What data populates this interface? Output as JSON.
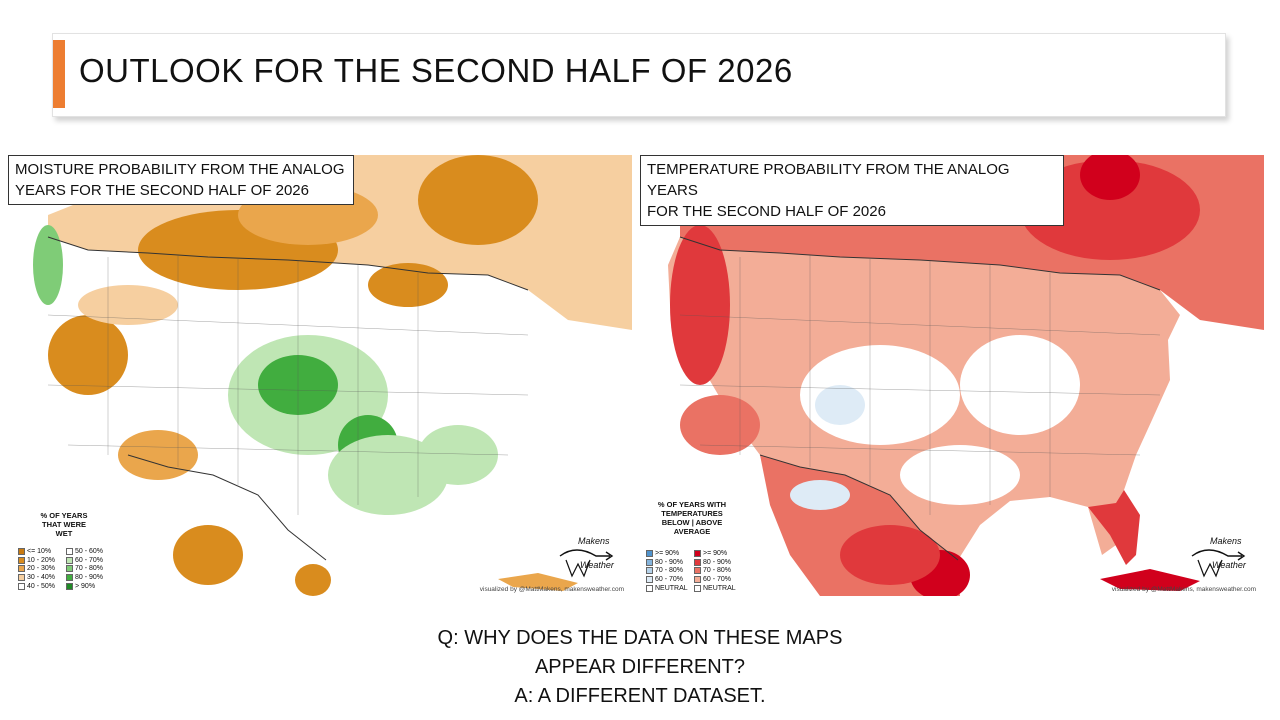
{
  "slide": {
    "title": "OUTLOOK FOR THE SECOND HALF OF 2026"
  },
  "moisture_map": {
    "label_line1": "MOISTURE PROBABILITY FROM THE ANALOG",
    "label_line2": "YEARS FOR THE SECOND HALF OF 2026",
    "legend_title": [
      "% OF YEARS",
      "THAT WERE",
      "WET"
    ],
    "legend_left": [
      {
        "label": "<= 10%",
        "color": "#c97a10"
      },
      {
        "label": "10 - 20%",
        "color": "#d98c1e"
      },
      {
        "label": "20 - 30%",
        "color": "#eaa64c"
      },
      {
        "label": "30 - 40%",
        "color": "#f6cfa0"
      },
      {
        "label": "40 - 50%",
        "color": "#ffffff"
      }
    ],
    "legend_right": [
      {
        "label": "50 - 60%",
        "color": "#ffffff"
      },
      {
        "label": "60 - 70%",
        "color": "#bfe6b4"
      },
      {
        "label": "70 - 80%",
        "color": "#7fcc77"
      },
      {
        "label": "80 - 90%",
        "color": "#41ad3f"
      },
      {
        "label": "> 90%",
        "color": "#1f8a26"
      }
    ],
    "credit": "visualized by @MattMakens, makensweather.com",
    "logo_top": "Makens",
    "logo_bottom": "Weather"
  },
  "temperature_map": {
    "label_line1": "TEMPERATURE PROBABILITY FROM THE ANALOG YEARS",
    "label_line2": "FOR THE SECOND HALF OF 2026",
    "legend_title": [
      "% OF YEARS WITH",
      "TEMPERATURES",
      "BELOW  |  ABOVE",
      "AVERAGE"
    ],
    "legend_left": [
      {
        "label": ">= 90%",
        "color": "#4f93cd"
      },
      {
        "label": "80 - 90%",
        "color": "#84b3db"
      },
      {
        "label": "70 - 80%",
        "color": "#b5d2ea"
      },
      {
        "label": "60 - 70%",
        "color": "#deebf6"
      },
      {
        "label": "NEUTRAL",
        "color": "#ffffff"
      }
    ],
    "legend_right": [
      {
        "label": ">= 90%",
        "color": "#d1001c"
      },
      {
        "label": "80 - 90%",
        "color": "#e0393c"
      },
      {
        "label": "70 - 80%",
        "color": "#ea7264"
      },
      {
        "label": "60 - 70%",
        "color": "#f3ad97"
      },
      {
        "label": "NEUTRAL",
        "color": "#ffffff"
      }
    ],
    "credit": "visualized by @MattMakens, makensweather.com",
    "logo_top": "Makens",
    "logo_bottom": "Weather"
  },
  "qa": {
    "line1": "Q: WHY DOES THE DATA ON THESE MAPS",
    "line2": "APPEAR DIFFERENT?",
    "line3": "A: A DIFFERENT DATASET."
  }
}
